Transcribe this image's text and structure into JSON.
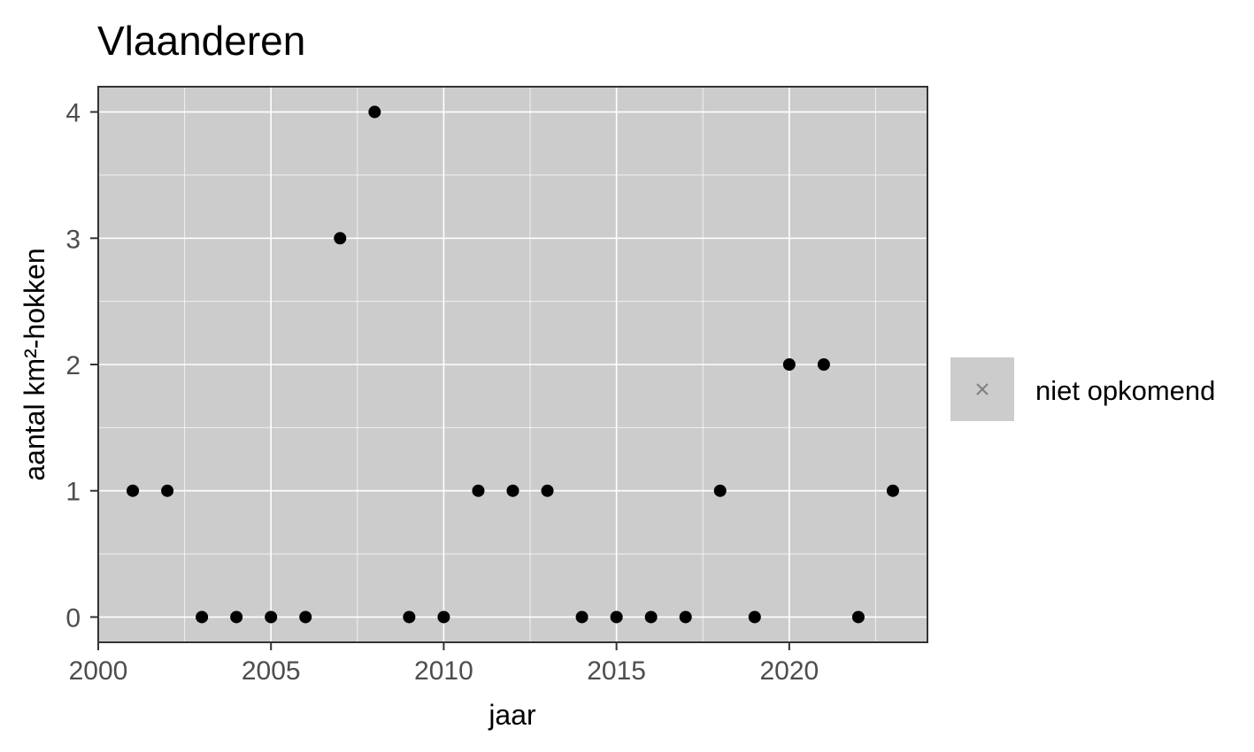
{
  "chart_data": {
    "type": "scatter",
    "title": "Vlaanderen",
    "xlabel": "jaar",
    "ylabel": "aantal km²-hokken",
    "xlim": [
      2000,
      2024
    ],
    "ylim": [
      -0.2,
      4.2
    ],
    "x_ticks": [
      2000,
      2005,
      2010,
      2015,
      2020
    ],
    "y_ticks": [
      0,
      1,
      2,
      3,
      4
    ],
    "grid": true,
    "legend_position": "right",
    "series": [
      {
        "x": [
          2001,
          2002,
          2003,
          2004,
          2005,
          2006,
          2007,
          2008,
          2009,
          2010,
          2011,
          2012,
          2013,
          2014,
          2015,
          2016,
          2017,
          2018,
          2019,
          2020,
          2021,
          2022,
          2023
        ],
        "y": [
          1,
          1,
          0,
          0,
          0,
          0,
          3,
          4,
          0,
          0,
          1,
          1,
          1,
          0,
          0,
          0,
          0,
          1,
          0,
          2,
          2,
          0,
          1
        ],
        "color": "#000000"
      }
    ],
    "legend": [
      {
        "label": "niet opkomend",
        "marker": "x",
        "color": "#7f7f7f"
      }
    ]
  },
  "colors": {
    "panel_background": "#cccccc",
    "grid": "#ffffff",
    "panel_border": "#333333",
    "point": "#000000",
    "tick_text": "#4d4d4d"
  }
}
